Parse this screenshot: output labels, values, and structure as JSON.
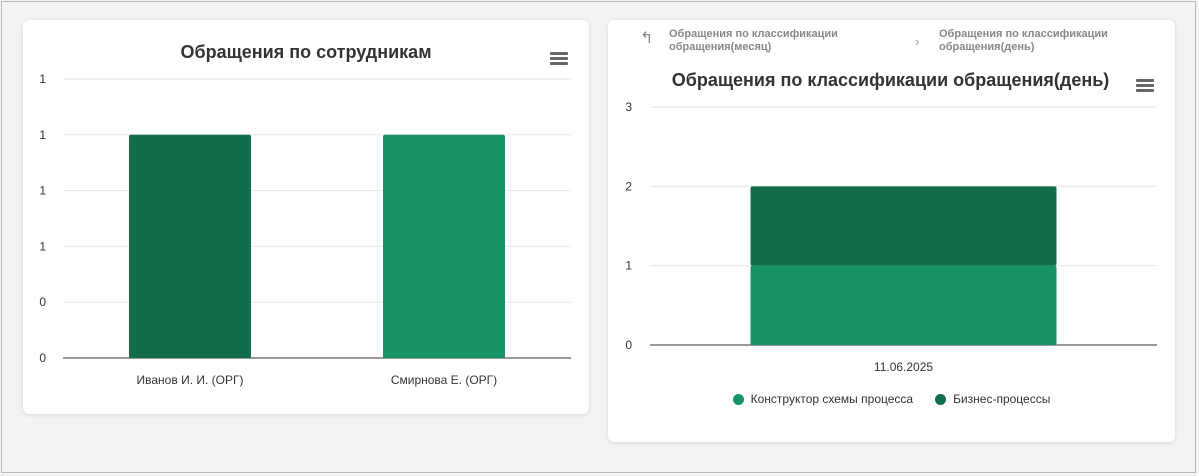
{
  "colors": {
    "dark_green": "#116d4a",
    "light_green": "#179466",
    "grid": "#e6e6e6",
    "axis": "#333333"
  },
  "chart_data": [
    {
      "type": "bar",
      "title": "Обращения по сотрудникам",
      "categories": [
        "Иванов И. И. (ОРГ)",
        "Смирнова Е. (ОРГ)"
      ],
      "series": [
        {
          "values": [
            1,
            1
          ],
          "colors": [
            "#116d4a",
            "#179466"
          ]
        }
      ],
      "ytick_labels": [
        "0",
        "0",
        "1",
        "1",
        "1",
        "1"
      ],
      "ylim": [
        0,
        1.25
      ],
      "grid": true,
      "legend": false
    },
    {
      "type": "bar",
      "stacked": true,
      "title": "Обращения по классификации обращения(день)",
      "categories": [
        "11.06.2025"
      ],
      "series": [
        {
          "name": "Конструктор схемы процесса",
          "values": [
            1
          ],
          "color": "#179466"
        },
        {
          "name": "Бизнес-процессы",
          "values": [
            1
          ],
          "color": "#116d4a"
        }
      ],
      "ytick_labels": [
        "0",
        "1",
        "2",
        "3"
      ],
      "ylim": [
        0,
        3
      ],
      "grid": true,
      "legend": "bottom"
    }
  ],
  "breadcrumb": {
    "back_icon": "drill-up-arrow-icon",
    "month_label": "Обращения по классификации обращения(месяц)",
    "day_label": "Обращения по классификации обращения(день)"
  },
  "menu_icon": "hamburger-menu-icon"
}
